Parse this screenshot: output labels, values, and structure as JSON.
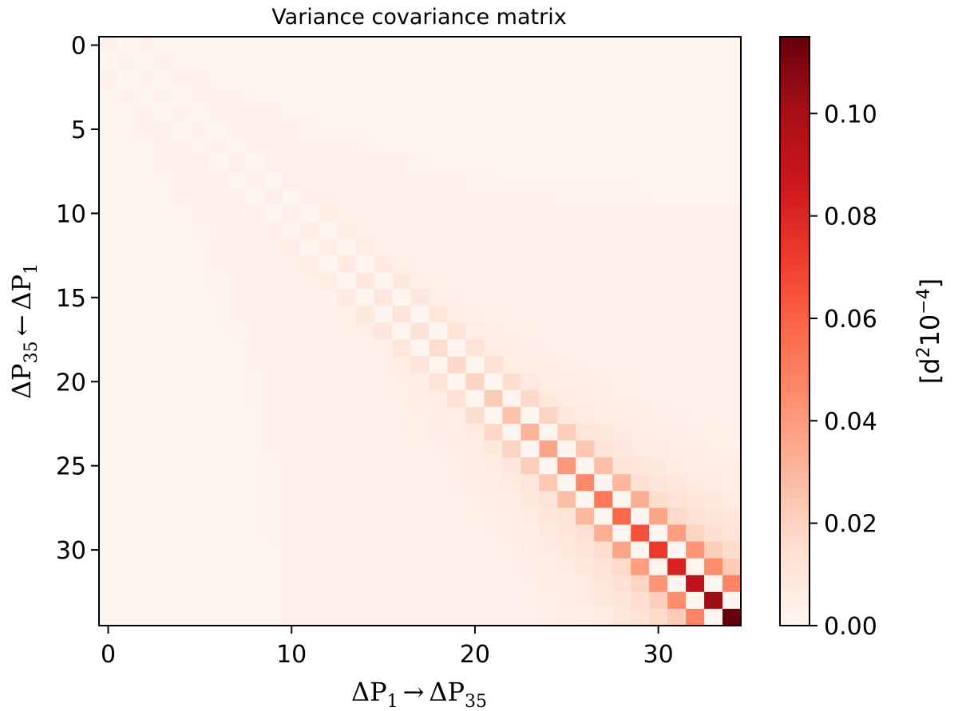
{
  "chart_data": {
    "type": "heatmap",
    "title": "Variance covariance matrix",
    "size": 35,
    "xlabel_parts": {
      "lead": "ΔP",
      "lead_sub": "1",
      "arrow": "→",
      "trail": "ΔP",
      "trail_sub": "35"
    },
    "ylabel_parts": {
      "lead": "ΔP",
      "lead_sub": "35",
      "arrow": "←",
      "trail": "ΔP",
      "trail_sub": "1"
    },
    "x_ticks": [
      0,
      10,
      20,
      30
    ],
    "y_ticks": [
      0,
      5,
      10,
      15,
      20,
      25,
      30
    ],
    "x_tick_labels": [
      "0",
      "10",
      "20",
      "30"
    ],
    "y_tick_labels": [
      "0",
      "5",
      "10",
      "15",
      "20",
      "25",
      "30"
    ],
    "xlim": [
      -0.5,
      34.5
    ],
    "ylim": [
      34.5,
      -0.5
    ],
    "colormap": "Reds",
    "colorbar": {
      "vmin": 0.0,
      "vmax": 0.115,
      "ticks": [
        0.0,
        0.02,
        0.04,
        0.06,
        0.08,
        0.1
      ],
      "tick_labels": [
        "0.00",
        "0.02",
        "0.04",
        "0.06",
        "0.08",
        "0.10"
      ],
      "label_parts": {
        "open": "[d",
        "sup1": "2",
        "mid": "10",
        "sup2": "−4",
        "close": "]"
      }
    },
    "diagonal_values": [
      0.002,
      0.002,
      0.002,
      0.002,
      0.002,
      0.002,
      0.002,
      0.003,
      0.003,
      0.004,
      0.004,
      0.005,
      0.006,
      0.007,
      0.008,
      0.009,
      0.011,
      0.013,
      0.015,
      0.017,
      0.019,
      0.022,
      0.026,
      0.031,
      0.036,
      0.041,
      0.046,
      0.052,
      0.058,
      0.065,
      0.073,
      0.082,
      0.092,
      0.102,
      0.115
    ],
    "offdiag_lag1_values": [
      0.0,
      0.0,
      0.0,
      0.0,
      0.0,
      0.0,
      0.0,
      0.0,
      0.0,
      0.0,
      0.0,
      0.0,
      0.0,
      0.0,
      0.0,
      0.0,
      0.0,
      0.0,
      0.0,
      0.0,
      0.0,
      0.0,
      0.0,
      0.0,
      0.0,
      0.0,
      0.0,
      0.0,
      0.0,
      0.0,
      0.0,
      0.0,
      0.0,
      0.0
    ],
    "offdiag_lag2_values": [
      0.002,
      0.002,
      0.002,
      0.002,
      0.002,
      0.003,
      0.003,
      0.003,
      0.004,
      0.004,
      0.005,
      0.005,
      0.006,
      0.007,
      0.008,
      0.009,
      0.01,
      0.011,
      0.012,
      0.013,
      0.015,
      0.017,
      0.019,
      0.021,
      0.024,
      0.027,
      0.03,
      0.033,
      0.036,
      0.039,
      0.042,
      0.045,
      0.048
    ],
    "background_value": 0.003
  }
}
